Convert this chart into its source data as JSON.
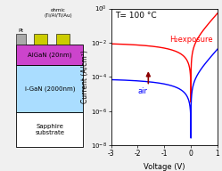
{
  "title": "T= 100 °C",
  "xlabel": "Voltage (V)",
  "ylabel": "Current (A/cm²)",
  "xlim": [
    -3,
    1
  ],
  "ylim_log": [
    -8,
    0
  ],
  "red_label": "H₂exposure",
  "blue_label": "air",
  "bg_color": "#f0f0f0",
  "plot_bg": "#ffffff",
  "diagram": {
    "layers": [
      {
        "label": "AlGaN (20nm)",
        "color": "#cc44cc"
      },
      {
        "label": "i-GaN (2000nm)",
        "color": "#aaddff"
      },
      {
        "label": "Sapphire\nsubstrate",
        "color": "#ffffff"
      }
    ],
    "ohmic_color": "#cccc00",
    "pt_color": "#aaaaaa",
    "contact_label": "ohmic\n(Ti/Al/Ti/Au)",
    "pt_label": "Pt"
  }
}
